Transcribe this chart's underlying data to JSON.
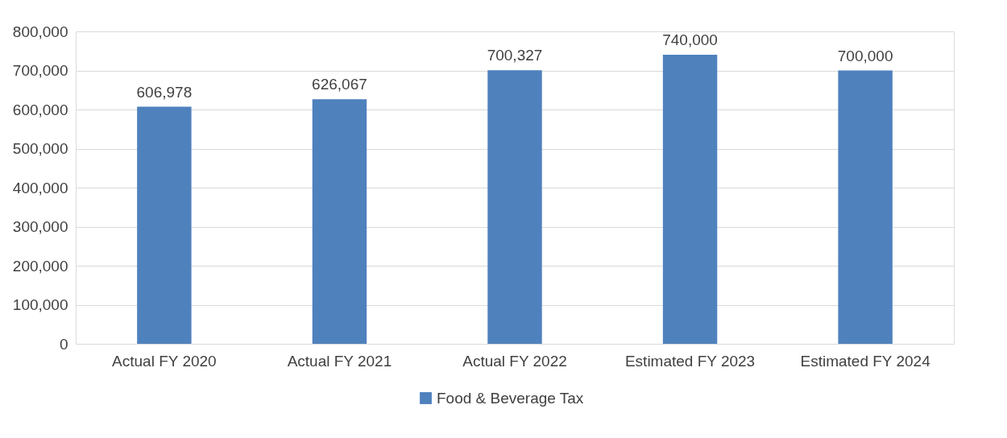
{
  "chart_data": {
    "type": "bar",
    "categories": [
      "Actual FY 2020",
      "Actual FY 2021",
      "Actual FY 2022",
      "Estimated FY 2023",
      "Estimated FY 2024"
    ],
    "series": [
      {
        "name": "Food & Beverage Tax",
        "color": "#4f81bd",
        "values": [
          606978,
          626067,
          700327,
          740000,
          700000
        ],
        "value_labels": [
          "606,978",
          "626,067",
          "700,327",
          "740,000",
          "700,000"
        ]
      }
    ],
    "ylim": [
      0,
      800000
    ],
    "yticks": [
      0,
      {
        "value": 100000,
        "label": "100,000"
      },
      {
        "value": 200000,
        "label": "200,000"
      },
      {
        "value": 300000,
        "label": "300,000"
      },
      {
        "value": 400000,
        "label": "400,000"
      },
      {
        "value": 500000,
        "label": "500,000"
      },
      {
        "value": 600000,
        "label": "600,000"
      },
      {
        "value": 700000,
        "label": "700,000"
      },
      {
        "value": 800000,
        "label": "800,000"
      }
    ],
    "grid": "y",
    "legend": "bottom"
  }
}
